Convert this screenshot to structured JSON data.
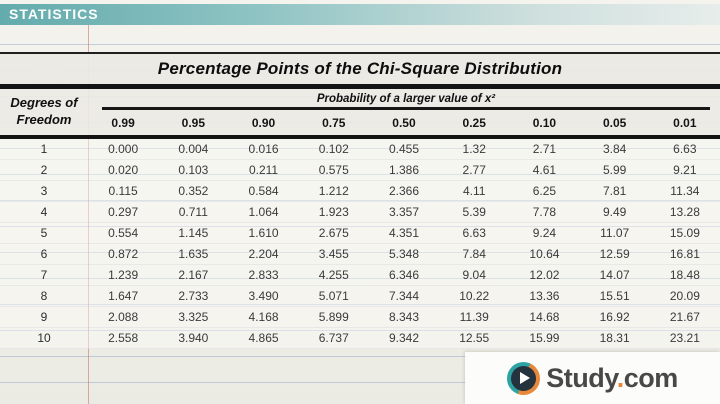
{
  "banner": {
    "label": "STATISTICS"
  },
  "table": {
    "title": "Percentage Points of the Chi-Square Distribution",
    "row_header": {
      "line1": "Degrees of",
      "line2": "Freedom"
    },
    "span_header": "Probability of a larger value of x²",
    "columns": [
      "0.99",
      "0.95",
      "0.90",
      "0.75",
      "0.50",
      "0.25",
      "0.10",
      "0.05",
      "0.01"
    ],
    "rows": [
      {
        "df": "1",
        "values": [
          "0.000",
          "0.004",
          "0.016",
          "0.102",
          "0.455",
          "1.32",
          "2.71",
          "3.84",
          "6.63"
        ]
      },
      {
        "df": "2",
        "values": [
          "0.020",
          "0.103",
          "0.211",
          "0.575",
          "1.386",
          "2.77",
          "4.61",
          "5.99",
          "9.21"
        ]
      },
      {
        "df": "3",
        "values": [
          "0.115",
          "0.352",
          "0.584",
          "1.212",
          "2.366",
          "4.11",
          "6.25",
          "7.81",
          "11.34"
        ]
      },
      {
        "df": "4",
        "values": [
          "0.297",
          "0.711",
          "1.064",
          "1.923",
          "3.357",
          "5.39",
          "7.78",
          "9.49",
          "13.28"
        ]
      },
      {
        "df": "5",
        "values": [
          "0.554",
          "1.145",
          "1.610",
          "2.675",
          "4.351",
          "6.63",
          "9.24",
          "11.07",
          "15.09"
        ]
      },
      {
        "df": "6",
        "values": [
          "0.872",
          "1.635",
          "2.204",
          "3.455",
          "5.348",
          "7.84",
          "10.64",
          "12.59",
          "16.81"
        ]
      },
      {
        "df": "7",
        "values": [
          "1.239",
          "2.167",
          "2.833",
          "4.255",
          "6.346",
          "9.04",
          "12.02",
          "14.07",
          "18.48"
        ]
      },
      {
        "df": "8",
        "values": [
          "1.647",
          "2.733",
          "3.490",
          "5.071",
          "7.344",
          "10.22",
          "13.36",
          "15.51",
          "20.09"
        ]
      },
      {
        "df": "9",
        "values": [
          "2.088",
          "3.325",
          "4.168",
          "5.899",
          "8.343",
          "11.39",
          "14.68",
          "16.92",
          "21.67"
        ]
      },
      {
        "df": "10",
        "values": [
          "2.558",
          "3.940",
          "4.865",
          "6.737",
          "9.342",
          "12.55",
          "15.99",
          "18.31",
          "23.21"
        ]
      }
    ]
  },
  "logo": {
    "brand": "Study",
    "dot": ".",
    "tld": "com"
  },
  "colors": {
    "banner_teal": "#63abad",
    "banner_teal_light": "#e7edeb",
    "logo_teal": "#2da3a4",
    "logo_orange": "#e8883b",
    "logo_navy": "#25333e",
    "logo_text": "#484848"
  }
}
